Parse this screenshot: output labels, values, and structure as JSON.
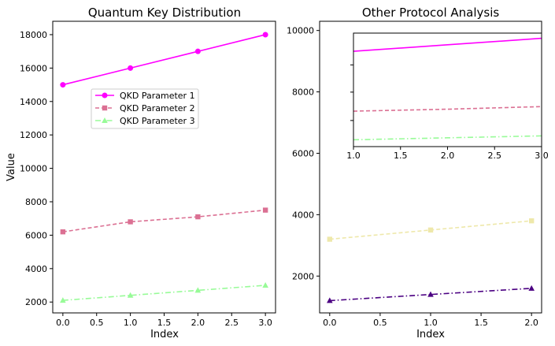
{
  "chart_data": [
    {
      "type": "line",
      "title": "Quantum Key Distribution",
      "xlabel": "Index",
      "ylabel": "Value",
      "x": [
        0,
        1,
        2,
        3
      ],
      "xlim": [
        -0.15,
        3.15
      ],
      "ylim": [
        1350,
        18800
      ],
      "xticks": [
        "0.0",
        "0.5",
        "1.0",
        "1.5",
        "2.0",
        "2.5",
        "3.0"
      ],
      "yticks": [
        "2000",
        "4000",
        "6000",
        "8000",
        "10000",
        "12000",
        "14000",
        "16000",
        "18000"
      ],
      "legend_position": "center-left",
      "grid": false,
      "series": [
        {
          "name": "QKD Parameter 1",
          "values": [
            15000,
            16000,
            17000,
            18000
          ],
          "color": "#ff00ff",
          "line": "solid",
          "marker": "circle"
        },
        {
          "name": "QKD Parameter 2",
          "values": [
            6200,
            6800,
            7100,
            7500
          ],
          "color": "#db7093",
          "line": "dashed",
          "marker": "square"
        },
        {
          "name": "QKD Parameter 3",
          "values": [
            2100,
            2400,
            2700,
            3000
          ],
          "color": "#98fb98",
          "line": "dashdot",
          "marker": "triangle"
        }
      ]
    },
    {
      "type": "line",
      "title": "Other Protocol Analysis",
      "xlabel": "Index",
      "ylabel": "",
      "x": [
        0,
        1,
        2
      ],
      "xlim": [
        -0.1,
        2.1
      ],
      "ylim": [
        800,
        10300
      ],
      "xticks": [
        "0.0",
        "0.5",
        "1.0",
        "1.5",
        "2.0"
      ],
      "yticks": [
        "2000",
        "4000",
        "6000",
        "8000",
        "10000"
      ],
      "grid": false,
      "series": [
        {
          "values": [
            3200,
            3500,
            3800
          ],
          "color": "#eee8aa",
          "line": "dashed",
          "marker": "square"
        },
        {
          "values": [
            1200,
            1400,
            1600
          ],
          "color": "#4b0082",
          "line": "dashdot",
          "marker": "triangle"
        }
      ],
      "inset": {
        "xlim": [
          1.0,
          3.0
        ],
        "ylim": [
          1350,
          18800
        ],
        "xticks": [
          "1.0",
          "1.5",
          "2.0",
          "2.5",
          "3.0"
        ],
        "series": [
          {
            "x": [
              1,
              2,
              3
            ],
            "values": [
              16000,
              17000,
              18000
            ],
            "color": "#ff00ff",
            "line": "solid"
          },
          {
            "x": [
              1,
              2,
              3
            ],
            "values": [
              6800,
              7100,
              7500
            ],
            "color": "#db7093",
            "line": "dashed"
          },
          {
            "x": [
              1,
              2,
              3
            ],
            "values": [
              2400,
              2700,
              3000
            ],
            "color": "#98fb98",
            "line": "dashdot"
          }
        ]
      }
    }
  ]
}
